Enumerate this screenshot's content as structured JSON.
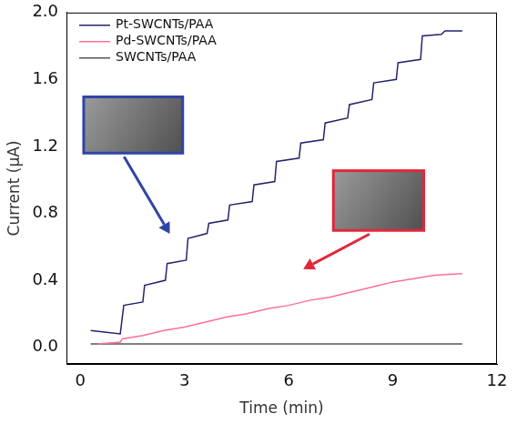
{
  "chart_data": {
    "type": "line",
    "x_label": "Time (min)",
    "y_label": "Current (μA)",
    "xlim": [
      -0.4,
      12
    ],
    "xticks": [
      0,
      3,
      6,
      9,
      12
    ],
    "ylim": [
      -0.1,
      2.0
    ],
    "yticks": [
      {
        "value": 0,
        "label": "0.0"
      },
      0.4,
      0.8,
      1.2,
      1.6,
      {
        "value": 2,
        "label": "2.0"
      }
    ],
    "grid": false,
    "legend": "upper left",
    "series": [
      {
        "name": "Pt-SWCNTs/PAA",
        "color": "#23236e",
        "x": [
          0.3,
          0.7,
          1.15,
          1.25,
          1.8,
          1.85,
          2.45,
          2.5,
          3.05,
          3.1,
          3.65,
          3.7,
          4.25,
          4.3,
          4.95,
          5.0,
          5.6,
          5.65,
          6.3,
          6.35,
          7.0,
          7.05,
          7.7,
          7.75,
          8.4,
          8.45,
          9.1,
          9.15,
          9.8,
          9.85,
          10.4,
          10.5,
          11.0
        ],
        "values": [
          0.1,
          0.09,
          0.08,
          0.25,
          0.27,
          0.37,
          0.4,
          0.5,
          0.52,
          0.65,
          0.68,
          0.74,
          0.76,
          0.85,
          0.87,
          0.97,
          0.99,
          1.11,
          1.13,
          1.22,
          1.24,
          1.34,
          1.37,
          1.45,
          1.48,
          1.58,
          1.6,
          1.7,
          1.72,
          1.86,
          1.87,
          1.89,
          1.89
        ]
      },
      {
        "name": "Pd-SWCNTs/PAA",
        "color": "#ff6f96",
        "x": [
          0.5,
          1.15,
          1.2,
          1.8,
          2.4,
          3.0,
          3.6,
          4.2,
          4.8,
          5.4,
          6.0,
          6.6,
          7.2,
          7.8,
          8.4,
          9.0,
          9.6,
          10.2,
          11.0
        ],
        "values": [
          0.02,
          0.03,
          0.05,
          0.07,
          0.1,
          0.12,
          0.15,
          0.18,
          0.2,
          0.23,
          0.25,
          0.28,
          0.3,
          0.33,
          0.36,
          0.39,
          0.41,
          0.43,
          0.44
        ]
      },
      {
        "name": "SWCNTs/PAA",
        "color": "#555555",
        "x": [
          0.3,
          3.0,
          6.0,
          9.0,
          11.0
        ],
        "values": [
          0.02,
          0.02,
          0.02,
          0.02,
          0.02
        ]
      }
    ]
  }
}
